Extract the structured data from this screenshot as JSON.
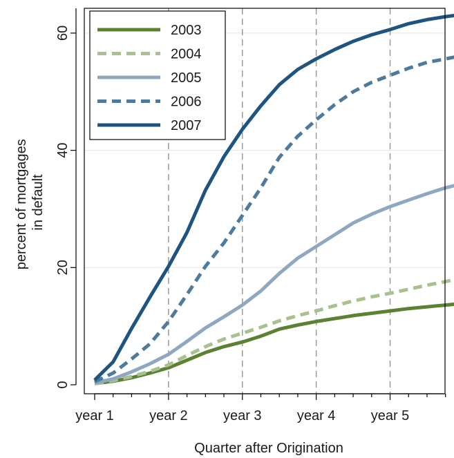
{
  "chart_data": {
    "type": "line",
    "xlabel": "Quarter after Origination",
    "ylabel_lines": [
      "percent of mortgages",
      "in default"
    ],
    "x_quarters": [
      1,
      2,
      3,
      4,
      5,
      6,
      7,
      8,
      9,
      10,
      11,
      12,
      13,
      14,
      15,
      16,
      17,
      18,
      19,
      20,
      21,
      22
    ],
    "x_ticks": [
      {
        "quarter": 1,
        "label": "year 1"
      },
      {
        "quarter": 5,
        "label": "year 2"
      },
      {
        "quarter": 9,
        "label": "year 3"
      },
      {
        "quarter": 13,
        "label": "year 4"
      },
      {
        "quarter": 17,
        "label": "year 5"
      }
    ],
    "x_minor_ticks": [
      2,
      3,
      4,
      6,
      7,
      8,
      10,
      11,
      12,
      14,
      15,
      16,
      18,
      19,
      20,
      21
    ],
    "x_grid_quarters": [
      5,
      9,
      13,
      17
    ],
    "xlim": [
      1,
      21
    ],
    "y_ticks": [
      {
        "value": 0,
        "label": "0"
      },
      {
        "value": 20,
        "label": "20"
      },
      {
        "value": 40,
        "label": "40"
      },
      {
        "value": 60,
        "label": "60"
      }
    ],
    "ylim": [
      0,
      64
    ],
    "legend_position": "top-left",
    "series": [
      {
        "name": "2003",
        "color": "#5b8233",
        "dash": "solid",
        "values": [
          0.2,
          0.6,
          1.2,
          2.0,
          2.9,
          4.2,
          5.5,
          6.5,
          7.3,
          8.3,
          9.5,
          10.2,
          10.8,
          11.3,
          11.8,
          12.2,
          12.6,
          13.0,
          13.3,
          13.6,
          13.9,
          14.2
        ]
      },
      {
        "name": "2004",
        "color": "#a9c08f",
        "dash": "dashed",
        "values": [
          0.2,
          0.7,
          1.4,
          2.3,
          3.4,
          5.0,
          6.5,
          7.8,
          8.8,
          9.8,
          10.9,
          11.8,
          12.6,
          13.5,
          14.3,
          15.0,
          15.6,
          16.3,
          17.0,
          17.6,
          18.3,
          19.0
        ]
      },
      {
        "name": "2005",
        "color": "#8fa8bf",
        "dash": "solid",
        "values": [
          0.3,
          1.0,
          2.2,
          3.6,
          5.2,
          7.4,
          9.7,
          11.6,
          13.6,
          16.0,
          19.0,
          21.6,
          23.6,
          25.6,
          27.6,
          29.1,
          30.4,
          31.5,
          32.6,
          33.6,
          34.4,
          35.0
        ]
      },
      {
        "name": "2006",
        "color": "#4e7a9c",
        "dash": "dashed",
        "values": [
          0.5,
          2.0,
          4.4,
          7.0,
          10.8,
          15.4,
          20.2,
          24.2,
          28.9,
          33.6,
          38.8,
          42.4,
          45.2,
          47.8,
          50.0,
          51.6,
          52.8,
          54.0,
          55.0,
          55.6,
          56.2,
          56.8
        ]
      },
      {
        "name": "2007",
        "color": "#1e5480",
        "dash": "solid",
        "values": [
          0.8,
          3.9,
          9.6,
          15.0,
          20.2,
          26.0,
          33.2,
          38.9,
          43.6,
          47.6,
          51.2,
          53.8,
          55.6,
          57.2,
          58.6,
          59.7,
          60.6,
          61.6,
          62.3,
          62.8,
          63.2,
          63.6
        ]
      }
    ]
  }
}
